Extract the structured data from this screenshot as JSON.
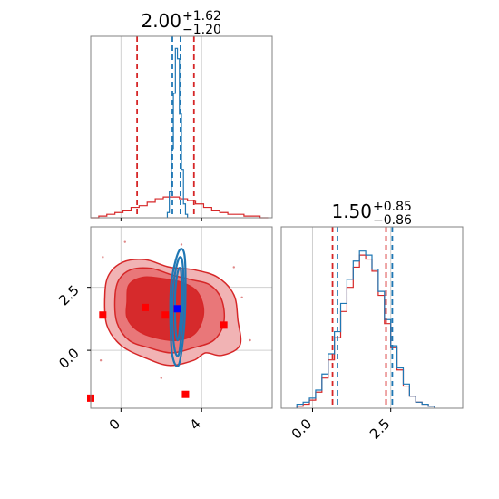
{
  "chart_data": {
    "type": "corner",
    "panels": [
      {
        "id": "marginal-param-1",
        "type": "histogram",
        "title": {
          "value": "2.00",
          "upper": "+1.62",
          "lower": "−1.20"
        },
        "xlim": [
          -1.5,
          7.5
        ],
        "xticks": [
          0,
          4
        ],
        "xtick_labels": [
          "0",
          "4"
        ],
        "grid": true,
        "series": [
          {
            "color": "#d62728",
            "bin_edges": [
              -1.5,
              -1.1,
              -0.7,
              -0.3,
              0.1,
              0.5,
              0.9,
              1.3,
              1.7,
              2.1,
              2.5,
              2.9,
              3.3,
              3.7,
              4.1,
              4.5,
              4.9,
              5.3,
              5.7,
              6.1,
              6.5,
              6.9,
              7.3
            ],
            "counts": [
              0.0,
              0.01,
              0.02,
              0.03,
              0.04,
              0.06,
              0.07,
              0.09,
              0.11,
              0.12,
              0.12,
              0.11,
              0.1,
              0.08,
              0.06,
              0.04,
              0.03,
              0.02,
              0.02,
              0.01,
              0.01,
              0.0
            ],
            "quantiles": [
              0.8,
              3.62
            ]
          },
          {
            "color": "#1f77b4",
            "bin_edges": [
              2.3,
              2.4,
              2.5,
              2.6,
              2.7,
              2.8,
              2.9,
              3.0,
              3.1,
              3.2,
              3.3
            ],
            "counts": [
              0.03,
              0.15,
              0.4,
              0.72,
              0.98,
              0.92,
              0.6,
              0.28,
              0.08,
              0.02
            ],
            "quantiles": [
              2.55,
              2.95
            ]
          }
        ],
        "ylim": [
          0,
          1.05
        ]
      },
      {
        "id": "marginal-param-2",
        "type": "histogram",
        "title": {
          "value": "1.50",
          "upper": "+0.85",
          "lower": "−0.86"
        },
        "xlim": [
          -1.0,
          4.8
        ],
        "xticks": [
          0.0,
          2.5
        ],
        "xtick_labels": [
          "0.0",
          "2.5"
        ],
        "grid": true,
        "series": [
          {
            "color": "#d62728",
            "bin_edges": [
              -0.5,
              -0.3,
              -0.1,
              0.1,
              0.3,
              0.5,
              0.7,
              0.9,
              1.1,
              1.3,
              1.5,
              1.7,
              1.9,
              2.1,
              2.3,
              2.5,
              2.7,
              2.9,
              3.1,
              3.3,
              3.5,
              3.7,
              3.9
            ],
            "counts": [
              0.01,
              0.02,
              0.04,
              0.08,
              0.15,
              0.24,
              0.35,
              0.48,
              0.6,
              0.7,
              0.76,
              0.74,
              0.68,
              0.56,
              0.42,
              0.3,
              0.19,
              0.11,
              0.06,
              0.03,
              0.02,
              0.01
            ],
            "quantiles": [
              0.64,
              2.35
            ]
          },
          {
            "color": "#1f77b4",
            "bin_edges": [
              -0.5,
              -0.3,
              -0.1,
              0.1,
              0.3,
              0.5,
              0.7,
              0.9,
              1.1,
              1.3,
              1.5,
              1.7,
              1.9,
              2.1,
              2.3,
              2.5,
              2.7,
              2.9,
              3.1,
              3.3,
              3.5,
              3.7,
              3.9
            ],
            "counts": [
              0.02,
              0.03,
              0.05,
              0.09,
              0.17,
              0.27,
              0.38,
              0.52,
              0.64,
              0.73,
              0.78,
              0.76,
              0.69,
              0.58,
              0.44,
              0.31,
              0.2,
              0.12,
              0.06,
              0.03,
              0.02,
              0.01
            ],
            "quantiles": [
              0.8,
              2.55
            ]
          }
        ],
        "ylim": [
          0,
          0.9
        ]
      },
      {
        "id": "joint-param-1-param-2",
        "type": "contour",
        "xlim": [
          -1.5,
          7.5
        ],
        "ylim": [
          -2.3,
          4.9
        ],
        "xticks": [
          0,
          4
        ],
        "xtick_labels": [
          "0",
          "4"
        ],
        "yticks": [
          0.0,
          2.5
        ],
        "ytick_labels": [
          "0.0",
          "2.5"
        ],
        "grid": true,
        "red_levels": [
          [
            [
              -0.8,
              2.2
            ],
            [
              -0.6,
              3.0
            ],
            [
              0.1,
              3.5
            ],
            [
              1.2,
              3.6
            ],
            [
              2.4,
              3.3
            ],
            [
              3.6,
              3.2
            ],
            [
              4.8,
              2.9
            ],
            [
              5.6,
              2.2
            ],
            [
              5.8,
              1.2
            ],
            [
              5.9,
              0.2
            ],
            [
              5.0,
              -0.2
            ],
            [
              4.2,
              -0.1
            ],
            [
              3.6,
              -0.4
            ],
            [
              2.4,
              -0.6
            ],
            [
              1.2,
              -0.3
            ],
            [
              0.0,
              0.2
            ],
            [
              -0.7,
              1.0
            ]
          ],
          [
            [
              -0.3,
              2.1
            ],
            [
              -0.1,
              2.8
            ],
            [
              0.5,
              3.2
            ],
            [
              1.5,
              3.25
            ],
            [
              2.5,
              3.0
            ],
            [
              3.5,
              2.8
            ],
            [
              4.4,
              2.6
            ],
            [
              5.0,
              2.0
            ],
            [
              5.1,
              1.1
            ],
            [
              4.6,
              0.4
            ],
            [
              3.6,
              0.1
            ],
            [
              2.5,
              -0.1
            ],
            [
              1.4,
              0.1
            ],
            [
              0.4,
              0.4
            ],
            [
              -0.2,
              1.1
            ]
          ],
          [
            [
              0.3,
              1.9
            ],
            [
              0.4,
              2.6
            ],
            [
              1.1,
              2.9
            ],
            [
              2.0,
              2.85
            ],
            [
              3.0,
              2.7
            ],
            [
              3.8,
              2.3
            ],
            [
              4.1,
              1.5
            ],
            [
              3.7,
              0.7
            ],
            [
              2.8,
              0.4
            ],
            [
              1.7,
              0.5
            ],
            [
              0.8,
              0.8
            ],
            [
              0.3,
              1.3
            ]
          ]
        ],
        "blue_levels": [
          [
            [
              2.5,
              2.7
            ],
            [
              2.85,
              3.9
            ],
            [
              3.15,
              3.8
            ],
            [
              3.2,
              2.2
            ],
            [
              3.1,
              0.6
            ],
            [
              2.85,
              -0.6
            ],
            [
              2.55,
              -0.2
            ],
            [
              2.45,
              1.2
            ]
          ],
          [
            [
              2.6,
              2.6
            ],
            [
              2.85,
              3.6
            ],
            [
              3.05,
              3.5
            ],
            [
              3.1,
              2.1
            ],
            [
              3.0,
              0.7
            ],
            [
              2.85,
              -0.2
            ],
            [
              2.65,
              0.1
            ],
            [
              2.55,
              1.3
            ]
          ],
          [
            [
              2.7,
              2.4
            ],
            [
              2.85,
              3.2
            ],
            [
              2.98,
              3.1
            ],
            [
              3.0,
              2.0
            ],
            [
              2.92,
              0.9
            ],
            [
              2.82,
              0.4
            ],
            [
              2.72,
              0.7
            ],
            [
              2.68,
              1.5
            ]
          ]
        ],
        "red_outliers": [
          [
            -0.9,
            3.7
          ],
          [
            6.0,
            2.1
          ],
          [
            6.4,
            0.4
          ],
          [
            -1.0,
            -0.4
          ],
          [
            5.6,
            3.3
          ],
          [
            0.2,
            4.3
          ],
          [
            3.0,
            4.2
          ],
          [
            2.0,
            -1.1
          ]
        ],
        "red_points": [
          [
            -0.9,
            1.4
          ],
          [
            1.2,
            1.7
          ],
          [
            2.2,
            1.4
          ],
          [
            5.1,
            1.0
          ],
          [
            -1.5,
            -1.9
          ],
          [
            3.2,
            -1.75
          ]
        ],
        "blue_point": [
          2.8,
          1.65
        ]
      }
    ]
  }
}
